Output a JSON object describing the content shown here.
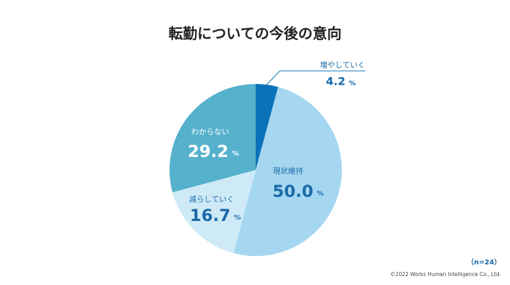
{
  "chart_data": {
    "type": "pie",
    "title": "転勤についての今後の意向",
    "categories": [
      "増やしていく",
      "現状維持",
      "減らしていく",
      "わからない"
    ],
    "values": [
      4.2,
      50.0,
      16.7,
      29.2
    ],
    "value_labels": [
      "4.2",
      "50.0",
      "16.7",
      "29.2"
    ],
    "unit": "%",
    "colors": [
      "#0a72b9",
      "#a6d7f1",
      "#cfeaf7",
      "#56b1cd"
    ],
    "note": "（n=24）",
    "copyright": "©2022 Works Human Intelligence Co., Ltd."
  }
}
